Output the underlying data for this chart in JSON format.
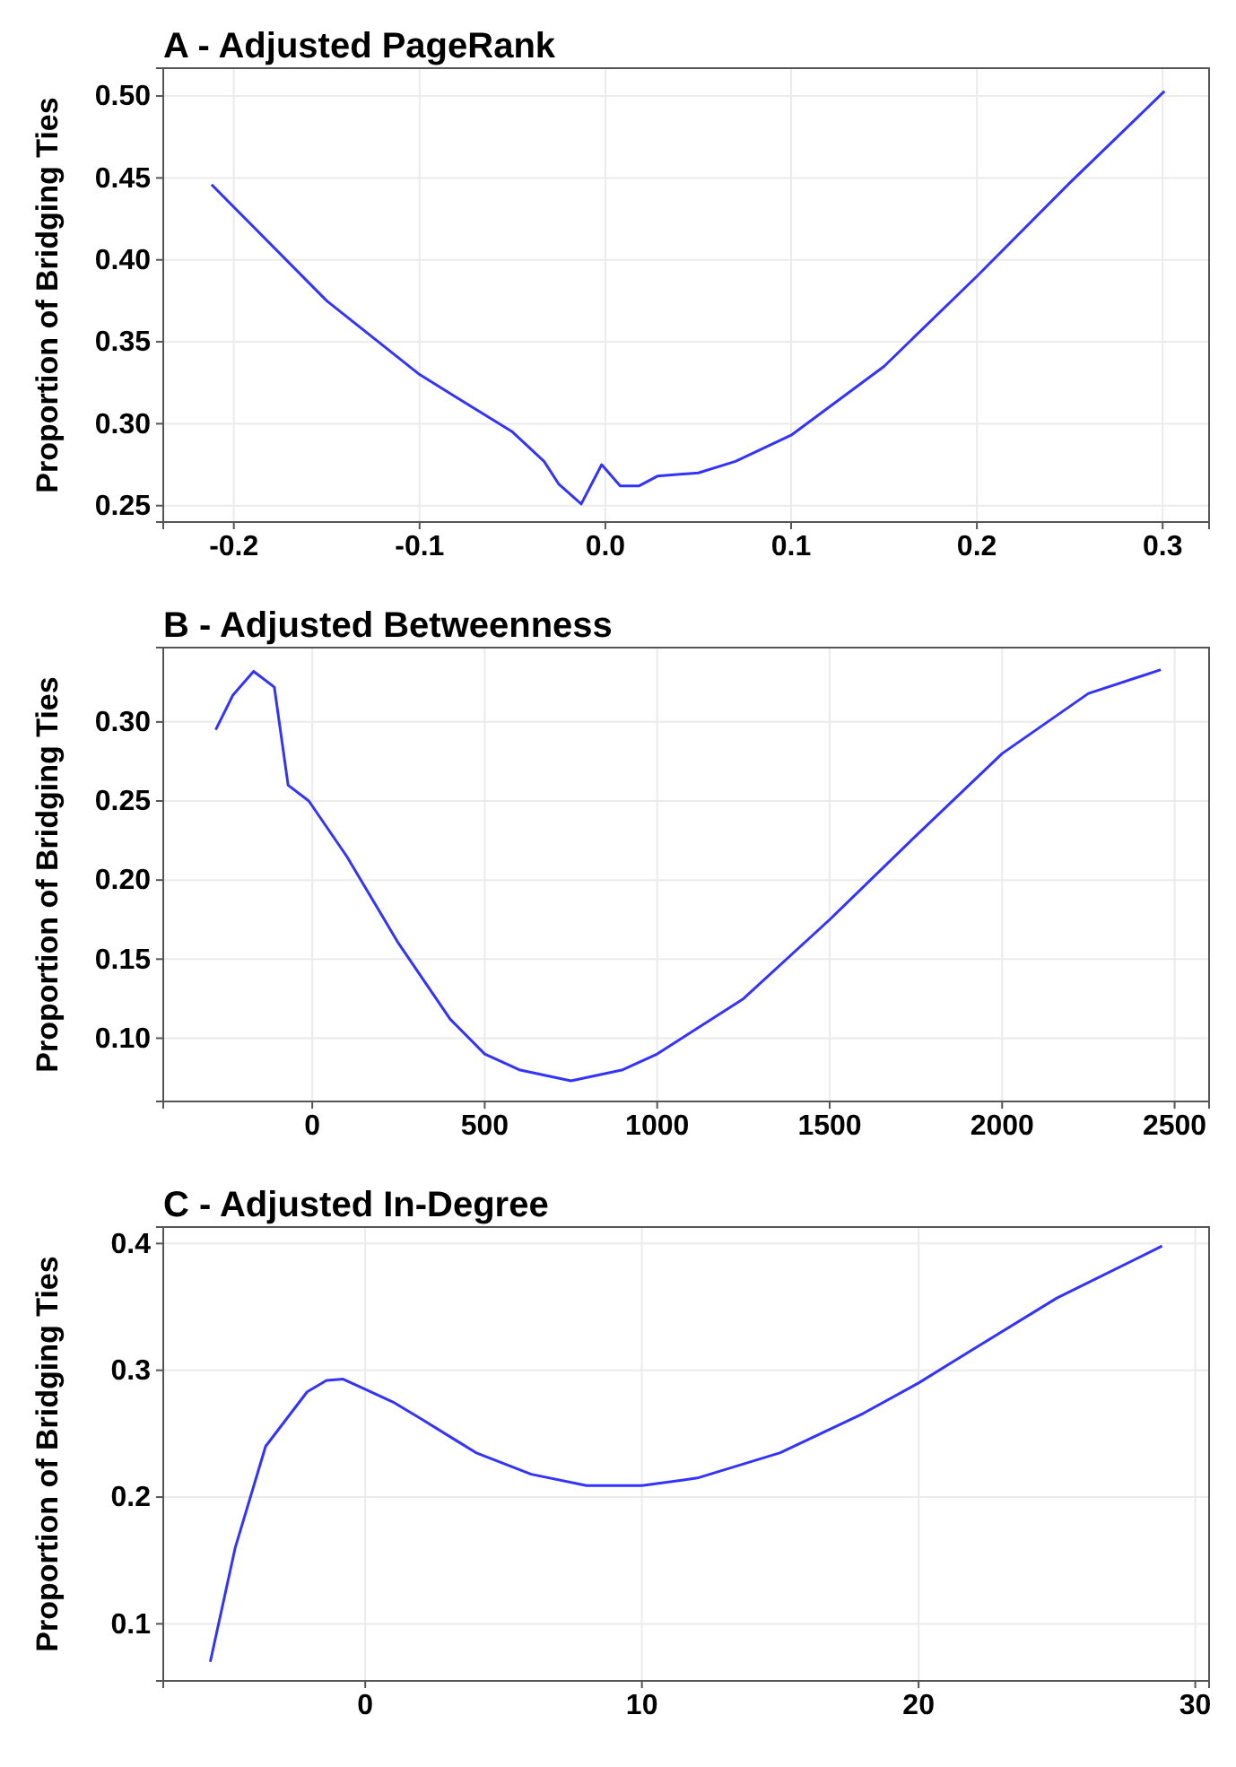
{
  "chart_data": [
    {
      "type": "line",
      "title": "A - Adjusted PageRank",
      "ylabel": "Proportion of Bridging Ties",
      "xlim": [
        -0.238,
        0.325
      ],
      "ylim": [
        0.24,
        0.517
      ],
      "xticks": [
        -0.2,
        -0.1,
        {
          "value": 0,
          "label": "0.0"
        },
        0.1,
        0.2,
        0.3
      ],
      "yticks": [
        0.25,
        {
          "value": 0.3,
          "label": "0.30"
        },
        0.35,
        {
          "value": 0.4,
          "label": "0.40"
        },
        0.45,
        {
          "value": 0.5,
          "label": "0.50"
        }
      ],
      "grid": true,
      "series": [
        {
          "color": "#3333ff",
          "x": [
            -0.212,
            -0.15,
            -0.1,
            -0.05,
            -0.033,
            -0.025,
            -0.013,
            -0.002,
            0.008,
            0.018,
            0.028,
            0.05,
            0.07,
            0.1,
            0.15,
            0.2,
            0.25,
            0.301
          ],
          "values": [
            0.446,
            0.375,
            0.33,
            0.295,
            0.277,
            0.263,
            0.251,
            0.275,
            0.262,
            0.262,
            0.268,
            0.27,
            0.277,
            0.293,
            0.335,
            0.39,
            0.447,
            0.503
          ]
        }
      ]
    },
    {
      "type": "line",
      "title": "B - Adjusted Betweenness",
      "ylabel": "Proportion of Bridging Ties",
      "xlim": [
        -432,
        2600
      ],
      "ylim": [
        0.06,
        0.347
      ],
      "xticks": [
        0,
        500,
        1000,
        1500,
        2000,
        2500
      ],
      "yticks": [
        {
          "value": 0.1,
          "label": "0.10"
        },
        0.15,
        {
          "value": 0.2,
          "label": "0.20"
        },
        0.25,
        {
          "value": 0.3,
          "label": "0.30"
        }
      ],
      "grid": true,
      "series": [
        {
          "color": "#3333ff",
          "x": [
            -280,
            -230,
            -170,
            -110,
            -70,
            -10,
            100,
            250,
            400,
            500,
            600,
            750,
            900,
            1000,
            1250,
            1500,
            1750,
            2000,
            2250,
            2460
          ],
          "values": [
            0.295,
            0.317,
            0.332,
            0.322,
            0.26,
            0.25,
            0.215,
            0.16,
            0.112,
            0.09,
            0.08,
            0.073,
            0.08,
            0.09,
            0.125,
            0.175,
            0.228,
            0.28,
            0.318,
            0.333
          ]
        }
      ]
    },
    {
      "type": "line",
      "title": "C - Adjusted In-Degree",
      "ylabel": "Proportion of Bridging Ties",
      "xlim": [
        -7.3,
        30.5
      ],
      "ylim": [
        0.055,
        0.413
      ],
      "xticks": [
        0,
        10,
        20,
        30
      ],
      "yticks": [
        0.1,
        0.2,
        0.3,
        0.4
      ],
      "grid": true,
      "series": [
        {
          "color": "#3333ff",
          "x": [
            -5.6,
            -4.7,
            -3.6,
            -2.1,
            -1.4,
            -0.8,
            0,
            1,
            2,
            4,
            6,
            8,
            10,
            12,
            15,
            18,
            20,
            22,
            25,
            28.8
          ],
          "values": [
            0.07,
            0.16,
            0.24,
            0.283,
            0.292,
            0.293,
            0.285,
            0.275,
            0.262,
            0.235,
            0.218,
            0.209,
            0.209,
            0.215,
            0.235,
            0.266,
            0.29,
            0.317,
            0.357,
            0.398
          ]
        }
      ]
    }
  ]
}
